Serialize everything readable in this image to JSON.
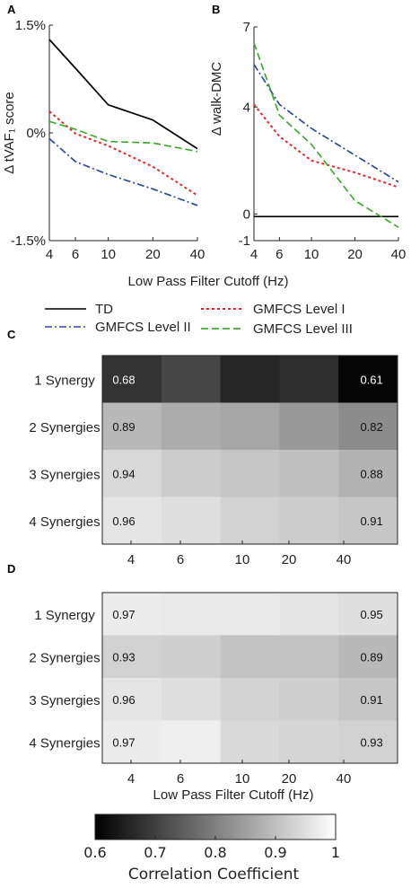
{
  "chart_data": [
    {
      "panel": "A",
      "type": "line",
      "ylabel": "Δ tVAF₁ score",
      "xlabel": "Low Pass Filter Cutoff (Hz)",
      "x": [
        4,
        6,
        10,
        20,
        40
      ],
      "x_tick_labels": [
        "4",
        "6",
        "10",
        "20",
        "40"
      ],
      "y_tick_labels": [
        "1.5%",
        "0%",
        "-1.5%"
      ],
      "y_ticks": [
        1.5,
        0,
        -1.5
      ],
      "ylim": [
        -1.5,
        1.5
      ],
      "series": [
        {
          "name": "TD",
          "color": "#000000",
          "dash": "solid",
          "values": [
            1.3,
            0.9,
            0.39,
            0.18,
            -0.22
          ]
        },
        {
          "name": "GMFCS Level I",
          "color": "#e8262b",
          "dash": "dot",
          "values": [
            0.3,
            -0.01,
            -0.18,
            -0.47,
            -0.87
          ]
        },
        {
          "name": "GMFCS Level II",
          "color": "#2b4a9a",
          "dash": "dashdot",
          "values": [
            -0.08,
            -0.4,
            -0.58,
            -0.78,
            -1.01
          ]
        },
        {
          "name": "GMFCS Level III",
          "color": "#3faa2e",
          "dash": "dash",
          "values": [
            0.16,
            0.05,
            -0.12,
            -0.14,
            -0.26
          ]
        }
      ]
    },
    {
      "panel": "B",
      "type": "line",
      "ylabel": "Δ walk-DMC",
      "xlabel": "Low Pass Filter Cutoff (Hz)",
      "x": [
        4,
        6,
        10,
        20,
        40
      ],
      "x_tick_labels": [
        "4",
        "6",
        "10",
        "20",
        "40"
      ],
      "y_tick_labels": [
        "7",
        "4",
        "0",
        "-1"
      ],
      "y_ticks": [
        7,
        4,
        0,
        -1
      ],
      "ylim": [
        -1,
        7
      ],
      "series": [
        {
          "name": "TD",
          "color": "#000000",
          "dash": "solid",
          "values": [
            -0.1,
            -0.1,
            -0.1,
            -0.1,
            -0.1
          ]
        },
        {
          "name": "GMFCS Level I",
          "color": "#e8262b",
          "dash": "dot",
          "values": [
            4.1,
            2.9,
            2.0,
            1.55,
            1.0
          ]
        },
        {
          "name": "GMFCS Level II",
          "color": "#2b4a9a",
          "dash": "dashdot",
          "values": [
            5.6,
            4.1,
            3.2,
            2.2,
            1.2
          ]
        },
        {
          "name": "GMFCS Level III",
          "color": "#3faa2e",
          "dash": "dash",
          "values": [
            6.4,
            3.7,
            2.6,
            0.5,
            -0.5
          ]
        }
      ]
    },
    {
      "panel": "C",
      "type": "heatmap",
      "rows": [
        "1 Synergy",
        "2 Synergies",
        "3 Synergies",
        "4 Synergies"
      ],
      "columns": [
        "4",
        "6",
        "10",
        "20",
        "40"
      ],
      "values": [
        [
          0.68,
          0.71,
          0.66,
          0.67,
          0.61
        ],
        [
          0.89,
          0.87,
          0.86,
          0.84,
          0.82
        ],
        [
          0.94,
          0.92,
          0.91,
          0.9,
          0.88
        ],
        [
          0.96,
          0.95,
          0.93,
          0.92,
          0.91
        ]
      ],
      "labeled_columns": [
        0,
        4
      ]
    },
    {
      "panel": "D",
      "type": "heatmap",
      "rows": [
        "1 Synergy",
        "2 Synergies",
        "3 Synergies",
        "4 Synergies"
      ],
      "columns": [
        "4",
        "6",
        "10",
        "20",
        "40"
      ],
      "xlabel": "Low Pass Filter Cutoff (Hz)",
      "values": [
        [
          0.97,
          0.965,
          0.965,
          0.96,
          0.95
        ],
        [
          0.93,
          0.925,
          0.905,
          0.905,
          0.89
        ],
        [
          0.96,
          0.95,
          0.93,
          0.925,
          0.91
        ],
        [
          0.97,
          0.975,
          0.94,
          0.935,
          0.93
        ]
      ],
      "labeled_columns": [
        0,
        4
      ]
    },
    {
      "type": "colorbar",
      "label": "Correlation Coefficient",
      "range": [
        0.6,
        1
      ],
      "tick_labels": [
        "0.6",
        "0.7",
        "0.8",
        "0.9",
        "1"
      ],
      "ticks": [
        0.6,
        0.7,
        0.8,
        0.9,
        1
      ]
    }
  ],
  "legend": {
    "items": [
      "TD",
      "GMFCS Level I",
      "GMFCS Level II",
      "GMFCS Level III"
    ]
  },
  "panel_labels": [
    "A",
    "B",
    "C",
    "D"
  ]
}
